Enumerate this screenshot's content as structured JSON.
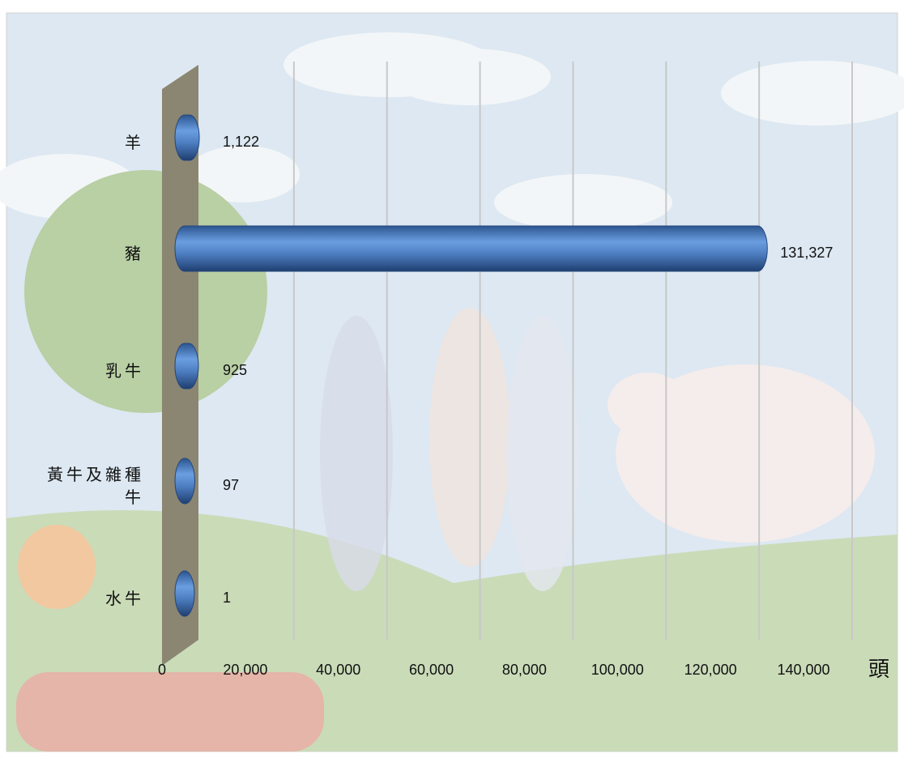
{
  "chart_data": {
    "type": "bar",
    "orientation": "horizontal",
    "categories": [
      "羊",
      "豬",
      "乳牛",
      "黃牛及雜種牛",
      "水牛"
    ],
    "values": [
      1122,
      131327,
      925,
      97,
      1
    ],
    "value_labels": [
      "1,122",
      "131,327",
      "925",
      "97",
      "1"
    ],
    "color": "#4a7cc0",
    "xlim": [
      0,
      140000
    ],
    "xticks": [
      0,
      {
        "value": 20000,
        "label": "20,000"
      },
      {
        "value": 40000,
        "label": "40,000"
      },
      {
        "value": 60000,
        "label": "60,000"
      },
      {
        "value": 80000,
        "label": "80,000"
      },
      {
        "value": 100000,
        "label": "100,000"
      },
      {
        "value": 120000,
        "label": "120,000"
      },
      {
        "value": 140000,
        "label": "140,000"
      }
    ],
    "x_label": "頭",
    "grid": true
  }
}
